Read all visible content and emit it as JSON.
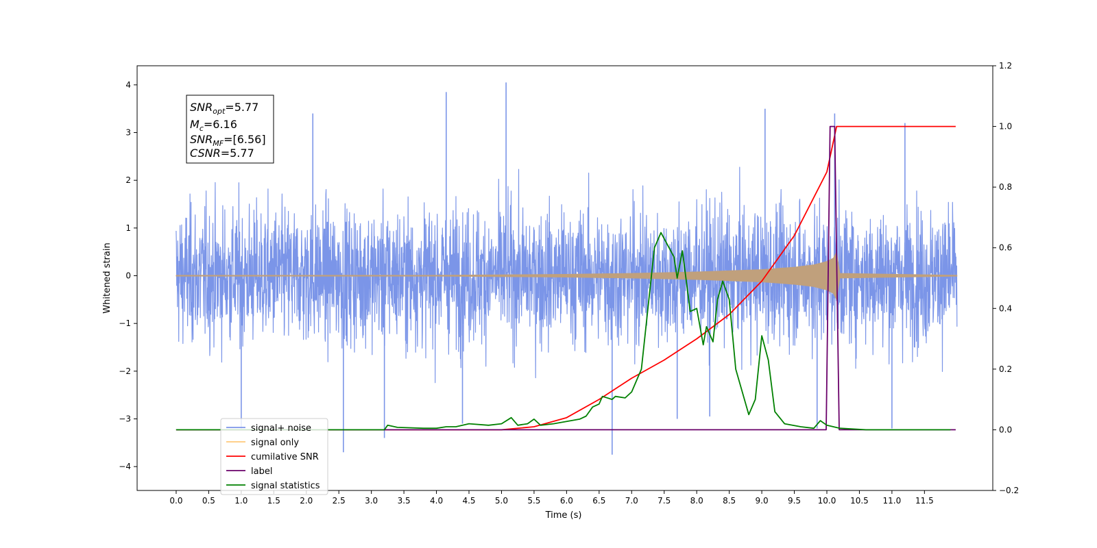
{
  "chart_data": {
    "type": "line",
    "title": "",
    "xlabel": "Time (s)",
    "ylabel": "Whitened strain",
    "y2label": "",
    "xlim": [
      -0.6,
      12.55
    ],
    "ylim": [
      -4.5,
      4.4
    ],
    "y2lim": [
      -0.2,
      1.2
    ],
    "x_ticks": [
      "0.0",
      "0.5",
      "1.0",
      "1.5",
      "2.0",
      "2.5",
      "3.0",
      "3.5",
      "4.0",
      "4.5",
      "5.0",
      "5.5",
      "6.0",
      "6.5",
      "7.0",
      "7.5",
      "8.0",
      "8.5",
      "9.0",
      "9.5",
      "10.0",
      "10.5",
      "11.0",
      "11.5"
    ],
    "y_ticks": [
      "4",
      "3",
      "2",
      "1",
      "0",
      "−1",
      "−2",
      "−3",
      "−4"
    ],
    "y2_ticks": [
      "1.2",
      "1.0",
      "0.8",
      "0.6",
      "0.4",
      "0.2",
      "0.0",
      "−0.2"
    ],
    "grid": false,
    "legend_position": "lower-left",
    "annotation": {
      "snr_opt": "5.77",
      "mc": "6.16",
      "snr_mf": "[6.56]",
      "csnr": "5.77"
    },
    "series": [
      {
        "name": "signal+ noise",
        "color": "#7b95e8",
        "axis": "left",
        "kind": "noise",
        "x_range": [
          0.0,
          12.0
        ],
        "typical_band": [
          -2.1,
          2.3
        ],
        "spikes": [
          [
            4.15,
            3.85
          ],
          [
            5.07,
            4.05
          ],
          [
            10.12,
            3.4
          ],
          [
            11.2,
            3.2
          ],
          [
            9.05,
            3.5
          ],
          [
            2.1,
            3.4
          ],
          [
            6.7,
            -3.75
          ],
          [
            2.57,
            -3.7
          ],
          [
            3.2,
            -3.4
          ],
          [
            1.0,
            -3.2
          ],
          [
            11.0,
            -3.2
          ],
          [
            9.85,
            -3.2
          ],
          [
            4.4,
            -3.1
          ],
          [
            7.7,
            -3.0
          ],
          [
            8.2,
            -2.95
          ]
        ]
      },
      {
        "name": "signal only",
        "color": "#c0a07c",
        "axis": "left",
        "kind": "envelope",
        "points": [
          [
            0.0,
            0.01
          ],
          [
            4.0,
            0.01
          ],
          [
            6.0,
            0.03
          ],
          [
            7.0,
            0.05
          ],
          [
            8.0,
            0.08
          ],
          [
            9.0,
            0.13
          ],
          [
            9.5,
            0.18
          ],
          [
            9.8,
            0.23
          ],
          [
            10.0,
            0.3
          ],
          [
            10.1,
            0.37
          ],
          [
            10.15,
            0.5
          ],
          [
            10.2,
            0.05
          ],
          [
            12.0,
            0.01
          ]
        ]
      },
      {
        "name": "cumilative SNR",
        "color": "#ff0000",
        "axis": "right",
        "kind": "line",
        "points": [
          [
            0.0,
            0.0
          ],
          [
            5.0,
            0.0
          ],
          [
            5.5,
            0.01
          ],
          [
            6.0,
            0.04
          ],
          [
            6.5,
            0.1
          ],
          [
            7.0,
            0.17
          ],
          [
            7.5,
            0.23
          ],
          [
            8.0,
            0.3
          ],
          [
            8.5,
            0.38
          ],
          [
            9.0,
            0.49
          ],
          [
            9.5,
            0.64
          ],
          [
            10.0,
            0.85
          ],
          [
            10.15,
            1.0
          ],
          [
            10.2,
            1.0
          ],
          [
            11.98,
            1.0
          ]
        ]
      },
      {
        "name": "label",
        "color": "#6a006a",
        "axis": "right",
        "kind": "line",
        "points": [
          [
            0.0,
            0.0
          ],
          [
            9.99,
            0.0
          ],
          [
            10.05,
            1.0
          ],
          [
            10.12,
            1.0
          ],
          [
            10.19,
            0.0
          ],
          [
            11.98,
            0.0
          ]
        ]
      },
      {
        "name": "signal statistics",
        "color": "#008000",
        "axis": "right",
        "kind": "line",
        "points": [
          [
            0.0,
            0.0
          ],
          [
            2.5,
            0.0
          ],
          [
            3.2,
            0.0
          ],
          [
            3.25,
            0.015
          ],
          [
            3.4,
            0.008
          ],
          [
            3.8,
            0.005
          ],
          [
            4.0,
            0.005
          ],
          [
            4.15,
            0.01
          ],
          [
            4.3,
            0.01
          ],
          [
            4.5,
            0.02
          ],
          [
            4.8,
            0.015
          ],
          [
            5.0,
            0.02
          ],
          [
            5.15,
            0.04
          ],
          [
            5.25,
            0.015
          ],
          [
            5.4,
            0.02
          ],
          [
            5.5,
            0.035
          ],
          [
            5.6,
            0.015
          ],
          [
            5.8,
            0.02
          ],
          [
            6.2,
            0.035
          ],
          [
            6.3,
            0.045
          ],
          [
            6.4,
            0.075
          ],
          [
            6.5,
            0.085
          ],
          [
            6.55,
            0.11
          ],
          [
            6.7,
            0.1
          ],
          [
            6.75,
            0.11
          ],
          [
            6.9,
            0.105
          ],
          [
            7.0,
            0.125
          ],
          [
            7.15,
            0.2
          ],
          [
            7.25,
            0.4
          ],
          [
            7.35,
            0.6
          ],
          [
            7.45,
            0.65
          ],
          [
            7.55,
            0.61
          ],
          [
            7.65,
            0.57
          ],
          [
            7.7,
            0.5
          ],
          [
            7.78,
            0.59
          ],
          [
            7.9,
            0.39
          ],
          [
            8.0,
            0.4
          ],
          [
            8.1,
            0.28
          ],
          [
            8.15,
            0.34
          ],
          [
            8.25,
            0.29
          ],
          [
            8.32,
            0.43
          ],
          [
            8.4,
            0.49
          ],
          [
            8.5,
            0.43
          ],
          [
            8.6,
            0.2
          ],
          [
            8.8,
            0.05
          ],
          [
            8.9,
            0.1
          ],
          [
            9.0,
            0.31
          ],
          [
            9.1,
            0.23
          ],
          [
            9.2,
            0.06
          ],
          [
            9.35,
            0.02
          ],
          [
            9.6,
            0.01
          ],
          [
            9.8,
            0.005
          ],
          [
            9.9,
            0.03
          ],
          [
            10.0,
            0.015
          ],
          [
            10.2,
            0.005
          ],
          [
            10.6,
            0.0
          ],
          [
            11.9,
            0.0
          ]
        ]
      }
    ]
  }
}
